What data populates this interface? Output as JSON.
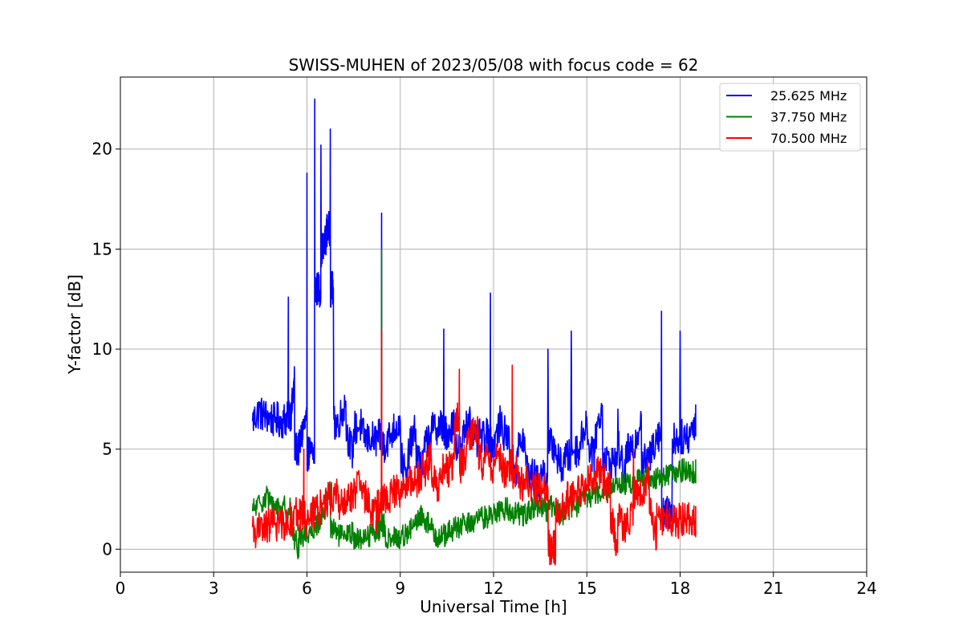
{
  "chart_data": {
    "type": "line",
    "title": "SWISS-MUHEN of 2023/05/08 with focus code = 62",
    "xlabel": "Universal Time [h]",
    "ylabel": "Y-factor [dB]",
    "xlim": [
      0,
      24
    ],
    "ylim": [
      -1.15,
      23.6
    ],
    "xticks": [
      0,
      3,
      6,
      9,
      12,
      15,
      18,
      21,
      24
    ],
    "yticks": [
      0,
      5,
      10,
      15,
      20
    ],
    "grid": true,
    "legend_position": "top-right",
    "series": [
      {
        "name": "25.625 MHz",
        "color": "#0000ff",
        "x": [
          4.25,
          4.5,
          4.75,
          5.0,
          5.25,
          5.4,
          5.5,
          5.6,
          5.75,
          5.9,
          6.0,
          6.1,
          6.25,
          6.35,
          6.45,
          6.55,
          6.65,
          6.75,
          6.85,
          7.0,
          7.25,
          7.5,
          7.75,
          8.0,
          8.25,
          8.4,
          8.5,
          8.75,
          9.0,
          9.25,
          9.5,
          9.75,
          10.0,
          10.25,
          10.4,
          10.5,
          10.75,
          11.0,
          11.25,
          11.5,
          11.75,
          11.9,
          12.0,
          12.25,
          12.5,
          12.75,
          13.0,
          13.25,
          13.5,
          13.75,
          14.0,
          14.25,
          14.5,
          14.75,
          15.0,
          15.25,
          15.5,
          15.75,
          16.0,
          16.25,
          16.5,
          16.75,
          17.0,
          17.25,
          17.4,
          17.5,
          17.75,
          18.0,
          18.25,
          18.5
        ],
        "y": [
          6.4,
          7.0,
          6.8,
          6.6,
          6.5,
          12.6,
          6.8,
          8.5,
          5.0,
          6.2,
          18.8,
          4.8,
          22.5,
          13.0,
          20.2,
          15.0,
          16.0,
          21.0,
          13.0,
          6.3,
          7.4,
          6.0,
          6.2,
          5.8,
          5.6,
          16.8,
          5.2,
          5.9,
          6.4,
          4.8,
          6.0,
          5.0,
          5.9,
          6.2,
          11.0,
          5.8,
          6.4,
          5.5,
          6.8,
          6.0,
          5.7,
          12.8,
          5.2,
          6.5,
          6.0,
          4.9,
          5.6,
          4.5,
          3.8,
          10.0,
          5.2,
          4.6,
          10.9,
          5.0,
          6.6,
          5.5,
          7.2,
          4.4,
          7.0,
          5.2,
          5.0,
          6.7,
          4.4,
          5.8,
          11.9,
          1.8,
          5.5,
          10.9,
          5.6,
          6.5
        ]
      },
      {
        "name": "37.750 MHz",
        "color": "#008000",
        "x": [
          4.25,
          4.5,
          4.75,
          5.0,
          5.25,
          5.5,
          5.75,
          6.0,
          6.25,
          6.5,
          6.75,
          7.0,
          7.25,
          7.5,
          7.75,
          8.0,
          8.25,
          8.4,
          8.5,
          8.75,
          9.0,
          9.25,
          9.5,
          9.75,
          10.0,
          10.25,
          10.5,
          10.75,
          11.0,
          11.25,
          11.5,
          11.75,
          12.0,
          12.25,
          12.5,
          12.75,
          13.0,
          13.25,
          13.5,
          13.75,
          14.0,
          14.25,
          14.5,
          14.75,
          15.0,
          15.25,
          15.5,
          15.75,
          16.0,
          16.25,
          16.5,
          16.75,
          17.0,
          17.25,
          17.5,
          17.75,
          18.0,
          18.25,
          18.5
        ],
        "y": [
          1.9,
          2.3,
          2.8,
          2.4,
          2.2,
          2.1,
          1.0,
          0.8,
          1.1,
          1.6,
          3.2,
          0.9,
          0.7,
          0.8,
          0.6,
          0.7,
          1.0,
          15.0,
          1.2,
          0.7,
          0.6,
          0.9,
          1.2,
          1.8,
          1.5,
          1.0,
          0.8,
          1.0,
          1.2,
          1.3,
          1.5,
          1.6,
          1.8,
          2.0,
          2.0,
          1.9,
          1.8,
          2.0,
          2.1,
          2.0,
          2.2,
          2.0,
          2.1,
          2.2,
          2.6,
          2.8,
          3.0,
          3.1,
          3.2,
          3.3,
          3.2,
          3.5,
          3.5,
          3.6,
          3.7,
          3.8,
          3.9,
          4.0,
          3.9
        ]
      },
      {
        "name": "70.500 MHz",
        "color": "#ff0000",
        "x": [
          4.25,
          4.5,
          4.75,
          5.0,
          5.25,
          5.5,
          5.75,
          5.9,
          6.0,
          6.25,
          6.5,
          6.75,
          7.0,
          7.25,
          7.5,
          7.75,
          8.0,
          8.25,
          8.4,
          8.5,
          8.75,
          9.0,
          9.25,
          9.5,
          9.75,
          10.0,
          10.25,
          10.5,
          10.75,
          10.9,
          11.0,
          11.25,
          11.5,
          11.75,
          12.0,
          12.25,
          12.5,
          12.6,
          12.75,
          13.0,
          13.25,
          13.5,
          13.75,
          13.9,
          14.0,
          14.25,
          14.5,
          14.75,
          15.0,
          15.25,
          15.5,
          15.75,
          16.0,
          16.25,
          16.5,
          16.75,
          17.0,
          17.25,
          17.5,
          17.75,
          18.0,
          18.25,
          18.5
        ],
        "y": [
          1.1,
          1.0,
          1.2,
          1.3,
          1.3,
          1.5,
          1.8,
          5.0,
          1.5,
          1.8,
          2.3,
          2.6,
          2.7,
          2.4,
          2.8,
          3.2,
          2.8,
          2.2,
          11.0,
          2.5,
          2.8,
          3.0,
          3.2,
          3.4,
          3.9,
          4.5,
          3.8,
          4.0,
          6.5,
          9.0,
          4.2,
          5.5,
          6.2,
          5.0,
          4.5,
          4.8,
          4.2,
          9.2,
          3.8,
          3.5,
          3.4,
          3.2,
          3.0,
          0.1,
          2.5,
          2.2,
          2.8,
          2.9,
          3.2,
          3.6,
          4.0,
          3.5,
          1.8,
          1.5,
          5.0,
          2.6,
          4.0,
          2.3,
          1.8,
          1.6,
          1.5,
          1.5,
          1.5
        ]
      }
    ]
  }
}
